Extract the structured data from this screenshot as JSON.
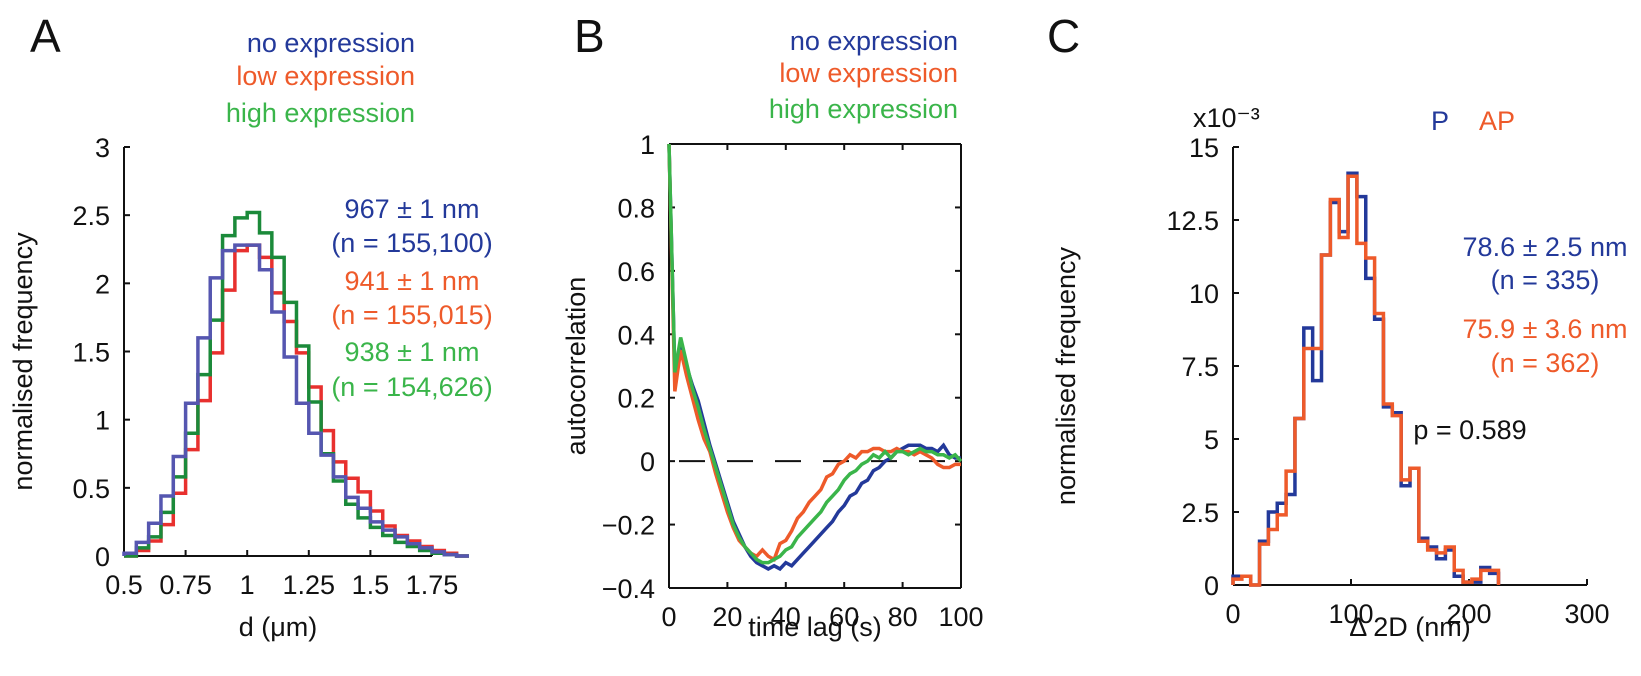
{
  "colors": {
    "blue": "#23399a",
    "red_hist": "#e8302e",
    "orange": "#ee5a2a",
    "green_dark": "#1b8a3a",
    "green": "#3ab54a",
    "purple": "#5556b0",
    "black": "#111111"
  },
  "chart_data": [
    {
      "panel": "A",
      "type": "line",
      "subtype": "step-histogram",
      "title": "",
      "xlabel": "d (μm)",
      "ylabel": "normalised frequency",
      "xlim": [
        0.5,
        1.75
      ],
      "ylim": [
        0,
        3
      ],
      "xticks": [
        0.5,
        0.75,
        1,
        1.25,
        1.5,
        1.75
      ],
      "xtick_labels": [
        "0.5",
        "0.75",
        "1",
        "1.25",
        "1.5",
        "1.75"
      ],
      "yticks": [
        0,
        0.5,
        1,
        1.5,
        2,
        2.5,
        3
      ],
      "ytick_labels": [
        "0",
        "0.5",
        "1",
        "1.5",
        "2",
        "2.5",
        "3"
      ],
      "grid": false,
      "legend": {
        "placement": "top-right",
        "entries": [
          {
            "label": "no expression",
            "color_key": "blue"
          },
          {
            "label": "low expression",
            "color_key": "orange"
          },
          {
            "label": "high expression",
            "color_key": "green"
          }
        ]
      },
      "annotations": [
        {
          "lines": [
            "967 ± 1 nm",
            "(n = 155,100)"
          ],
          "color_key": "blue"
        },
        {
          "lines": [
            "941 ± 1 nm",
            "(n = 155,015)"
          ],
          "color_key": "orange"
        },
        {
          "lines": [
            "938 ± 1 nm",
            "(n = 154,626)"
          ],
          "color_key": "green"
        }
      ],
      "bin_edges_start": 0.5,
      "bin_width": 0.05,
      "series": [
        {
          "name": "low expression",
          "color_key": "red_hist",
          "values": [
            0.0,
            0.04,
            0.11,
            0.23,
            0.46,
            0.78,
            1.14,
            1.49,
            1.95,
            2.24,
            2.28,
            2.19,
            1.93,
            1.72,
            1.49,
            1.24,
            0.92,
            0.69,
            0.57,
            0.47,
            0.33,
            0.22,
            0.15,
            0.11,
            0.07,
            0.04,
            0.02,
            0.0
          ]
        },
        {
          "name": "high expression",
          "color_key": "green_dark",
          "values": [
            0.0,
            0.06,
            0.14,
            0.32,
            0.58,
            0.9,
            1.33,
            1.73,
            2.35,
            2.48,
            2.52,
            2.37,
            2.19,
            1.86,
            1.54,
            1.13,
            0.75,
            0.55,
            0.38,
            0.28,
            0.21,
            0.15,
            0.1,
            0.07,
            0.04,
            0.02,
            0.01,
            0.0
          ]
        },
        {
          "name": "no expression",
          "color_key": "purple",
          "values": [
            0.02,
            0.1,
            0.24,
            0.44,
            0.73,
            1.12,
            1.6,
            2.04,
            2.24,
            2.28,
            2.28,
            2.1,
            1.79,
            1.46,
            1.12,
            0.9,
            0.74,
            0.58,
            0.43,
            0.35,
            0.25,
            0.19,
            0.14,
            0.09,
            0.06,
            0.03,
            0.01,
            0.0
          ]
        }
      ]
    },
    {
      "panel": "B",
      "type": "line",
      "title": "",
      "xlabel": "time lag (s)",
      "ylabel": "autocorrelation",
      "xlim": [
        0,
        100
      ],
      "ylim": [
        -0.4,
        1
      ],
      "xticks": [
        0,
        20,
        40,
        60,
        80,
        100
      ],
      "xtick_labels": [
        "0",
        "20",
        "40",
        "60",
        "80",
        "100"
      ],
      "yticks": [
        -0.4,
        -0.2,
        0,
        0.2,
        0.4,
        0.6,
        0.8,
        1
      ],
      "ytick_labels": [
        "−0.4",
        "−0.2",
        "0",
        "0.2",
        "0.4",
        "0.6",
        "0.8",
        "1"
      ],
      "grid": false,
      "box": true,
      "reference_line": {
        "y": 0,
        "style": "dashed"
      },
      "legend": {
        "placement": "top-right",
        "entries": [
          {
            "label": "no expression",
            "color_key": "blue"
          },
          {
            "label": "low expression",
            "color_key": "orange"
          },
          {
            "label": "high expression",
            "color_key": "green"
          }
        ]
      },
      "x": [
        0,
        2,
        4,
        6,
        8,
        10,
        12,
        14,
        16,
        18,
        20,
        22,
        24,
        26,
        28,
        30,
        32,
        34,
        36,
        38,
        40,
        42,
        44,
        46,
        48,
        50,
        52,
        54,
        56,
        58,
        60,
        62,
        64,
        66,
        68,
        70,
        72,
        74,
        76,
        78,
        80,
        82,
        84,
        86,
        88,
        90,
        92,
        94,
        96,
        98,
        100
      ],
      "series": [
        {
          "name": "no expression",
          "color_key": "blue",
          "values": [
            1.0,
            0.28,
            0.38,
            0.3,
            0.24,
            0.19,
            0.12,
            0.05,
            -0.01,
            -0.07,
            -0.13,
            -0.19,
            -0.23,
            -0.27,
            -0.3,
            -0.32,
            -0.33,
            -0.34,
            -0.33,
            -0.34,
            -0.32,
            -0.33,
            -0.31,
            -0.29,
            -0.27,
            -0.25,
            -0.23,
            -0.21,
            -0.19,
            -0.16,
            -0.14,
            -0.11,
            -0.1,
            -0.07,
            -0.06,
            -0.03,
            -0.02,
            0.0,
            0.01,
            0.03,
            0.04,
            0.05,
            0.05,
            0.05,
            0.04,
            0.04,
            0.03,
            0.05,
            0.02,
            0.01,
            0.01
          ]
        },
        {
          "name": "low expression",
          "color_key": "orange",
          "values": [
            1.0,
            0.22,
            0.35,
            0.27,
            0.2,
            0.13,
            0.07,
            0.03,
            -0.04,
            -0.1,
            -0.16,
            -0.21,
            -0.25,
            -0.27,
            -0.29,
            -0.3,
            -0.28,
            -0.3,
            -0.31,
            -0.26,
            -0.25,
            -0.22,
            -0.18,
            -0.16,
            -0.13,
            -0.11,
            -0.09,
            -0.05,
            -0.04,
            -0.01,
            0.0,
            0.02,
            0.01,
            0.03,
            0.03,
            0.04,
            0.04,
            0.03,
            0.03,
            0.04,
            0.03,
            0.03,
            0.02,
            0.03,
            0.02,
            0.01,
            -0.01,
            -0.02,
            -0.02,
            -0.01,
            -0.01
          ]
        },
        {
          "name": "high expression",
          "color_key": "green",
          "values": [
            1.0,
            0.28,
            0.39,
            0.31,
            0.23,
            0.17,
            0.1,
            0.04,
            -0.02,
            -0.08,
            -0.14,
            -0.2,
            -0.24,
            -0.27,
            -0.29,
            -0.31,
            -0.32,
            -0.32,
            -0.31,
            -0.3,
            -0.28,
            -0.27,
            -0.24,
            -0.22,
            -0.2,
            -0.18,
            -0.16,
            -0.13,
            -0.11,
            -0.09,
            -0.06,
            -0.04,
            -0.03,
            -0.01,
            0.0,
            0.02,
            0.01,
            0.03,
            0.01,
            0.03,
            0.03,
            0.02,
            0.03,
            0.04,
            0.03,
            0.03,
            0.02,
            0.02,
            0.01,
            0.02,
            0.0
          ]
        }
      ]
    },
    {
      "panel": "C",
      "type": "line",
      "subtype": "step-histogram",
      "title": "",
      "xlabel": "Δ 2D (nm)",
      "ylabel": "normalised frequency",
      "y_multiplier": "x10⁻³",
      "xlim": [
        0,
        300
      ],
      "ylim": [
        0,
        15
      ],
      "xticks": [
        0,
        100,
        200,
        300
      ],
      "xtick_labels": [
        "0",
        "100",
        "200",
        "300"
      ],
      "yticks": [
        0,
        2.5,
        5,
        7.5,
        10,
        12.5,
        15
      ],
      "ytick_labels": [
        "0",
        "2.5",
        "5",
        "7.5",
        "10",
        "12.5",
        "15"
      ],
      "grid": false,
      "legend": {
        "placement": "top-right",
        "entries": [
          {
            "label": "P",
            "color_key": "blue"
          },
          {
            "label": "AP",
            "color_key": "orange"
          }
        ]
      },
      "annotations": [
        {
          "lines": [
            "78.6 ± 2.5 nm",
            "(n = 335)"
          ],
          "color_key": "blue"
        },
        {
          "lines": [
            "75.9 ± 3.6 nm",
            "(n = 362)"
          ],
          "color_key": "orange"
        },
        {
          "lines": [
            "p = 0.589"
          ],
          "color_key": "black"
        }
      ],
      "bin_edges_start": 0,
      "bin_width": 7.5,
      "series": [
        {
          "name": "P",
          "color_key": "blue",
          "values": [
            0.3,
            0.3,
            0.0,
            1.5,
            2.5,
            2.8,
            3.1,
            5.7,
            8.8,
            7.0,
            11.3,
            13.1,
            12.1,
            14.1,
            13.3,
            10.5,
            9.1,
            6.1,
            5.9,
            3.4,
            4.0,
            1.6,
            1.3,
            0.9,
            1.2,
            0.3,
            0.1,
            0.1,
            0.6,
            0.4
          ]
        },
        {
          "name": "AP",
          "color_key": "orange",
          "values": [
            0.2,
            0.3,
            0.0,
            1.4,
            1.9,
            2.4,
            3.9,
            5.7,
            8.1,
            8.1,
            11.3,
            13.2,
            11.9,
            14.0,
            11.7,
            11.2,
            9.3,
            6.2,
            5.8,
            3.6,
            4.0,
            1.5,
            1.2,
            1.1,
            1.3,
            0.5,
            0.1,
            0.2,
            0.5,
            0.5
          ]
        }
      ]
    }
  ]
}
